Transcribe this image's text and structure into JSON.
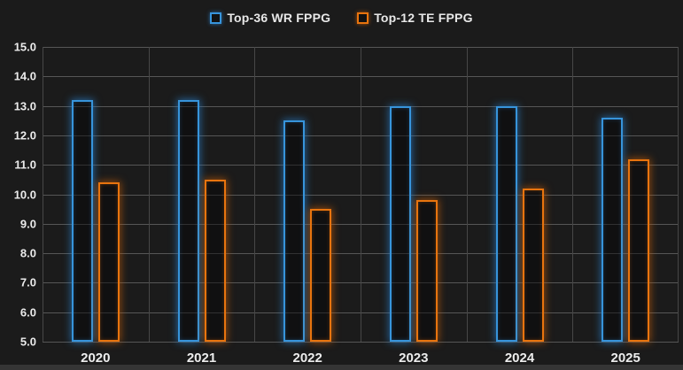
{
  "legend": {
    "wr_label": "Top-36 WR FPPG",
    "te_label": "Top-12 TE FPPG"
  },
  "colors": {
    "background": "#1b1b1b",
    "gridline": "#565656",
    "text": "#ececec",
    "wr_series": "#3794db",
    "te_series": "#e8740e",
    "bottom_strip": "#353535"
  },
  "chart_data": {
    "type": "bar",
    "title": "",
    "xlabel": "",
    "ylabel": "",
    "categories": [
      "2020",
      "2021",
      "2022",
      "2023",
      "2024",
      "2025"
    ],
    "series": [
      {
        "name": "Top-36 WR FPPG",
        "color": "#3794db",
        "values": [
          13.2,
          13.2,
          12.5,
          13.0,
          13.0,
          12.6
        ]
      },
      {
        "name": "Top-12 TE FPPG",
        "color": "#e8740e",
        "values": [
          10.4,
          10.5,
          9.5,
          9.8,
          10.2,
          11.2
        ]
      }
    ],
    "ylim": [
      5.0,
      15.0
    ],
    "ytick_step": 1.0,
    "yticks": [
      "15.0",
      "14.0",
      "13.0",
      "12.0",
      "11.0",
      "10.0",
      "9.0",
      "8.0",
      "7.0",
      "6.0",
      "5.0"
    ],
    "grid": true,
    "vertical_category_gridlines": true,
    "legend_position": "top-center",
    "bar_style": "hollow-outline-glow"
  }
}
